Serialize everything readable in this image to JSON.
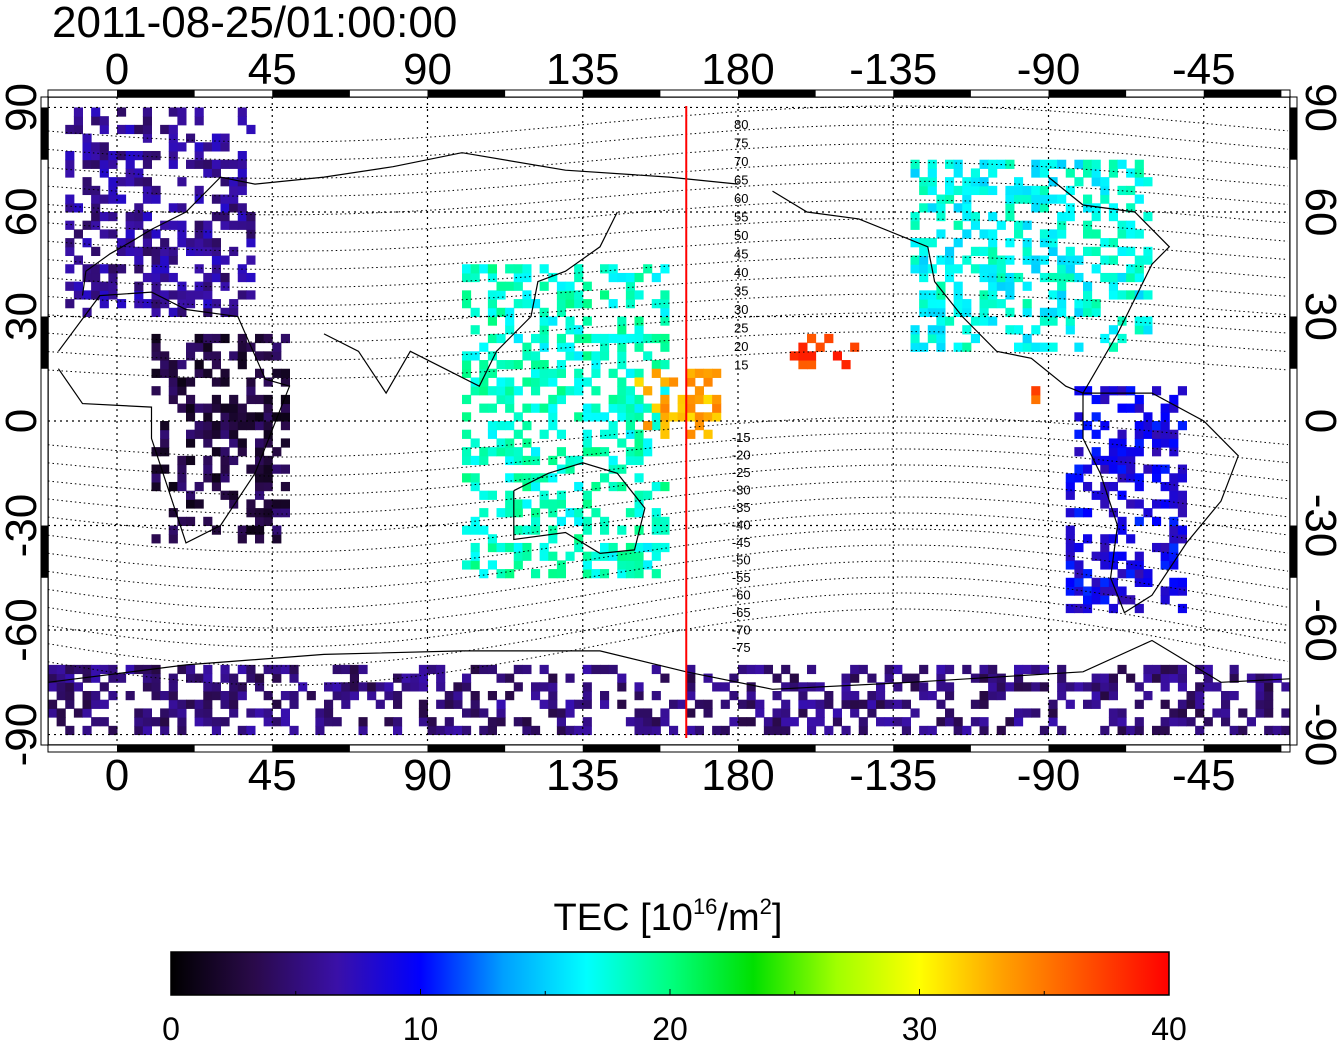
{
  "title": "2011-08-25/01:00:00",
  "map": {
    "lon_ticks": [
      "0",
      "45",
      "90",
      "135",
      "180",
      "-135",
      "-90",
      "-45"
    ],
    "lon_values": [
      0,
      45,
      90,
      135,
      180,
      225,
      270,
      315
    ],
    "lat_ticks": [
      "90",
      "60",
      "30",
      "0",
      "-30",
      "-60",
      "-90"
    ],
    "lat_values": [
      90,
      60,
      30,
      0,
      -30,
      -60,
      -90
    ],
    "lon_range": [
      -20,
      340
    ],
    "lat_range": [
      -93,
      93
    ],
    "grid": true,
    "meridian_line_lon": 165,
    "meridian_line_color": "#ff0000",
    "mag_lat_labels_north": [
      "80",
      "75",
      "70",
      "65",
      "60",
      "55",
      "50",
      "45",
      "40",
      "35",
      "30",
      "25",
      "20",
      "15"
    ],
    "mag_lat_labels_south": [
      "15",
      "20",
      "25",
      "30",
      "35",
      "40",
      "45",
      "50",
      "55",
      "60",
      "65",
      "70",
      "75"
    ]
  },
  "colorbar": {
    "title_main": "TEC  [10",
    "title_sup1": "16",
    "title_mid": "/m",
    "title_sup2": "2",
    "title_end": "]",
    "tick_labels": [
      "0",
      "10",
      "20",
      "30",
      "40"
    ],
    "tick_values": [
      0,
      10,
      20,
      30,
      40
    ],
    "range": [
      0,
      40
    ],
    "colors": [
      "#000000",
      "#2a0a4a",
      "#3a10a8",
      "#0000ff",
      "#00a0ff",
      "#00ffff",
      "#00ff80",
      "#00e000",
      "#a0ff00",
      "#ffff00",
      "#ffa000",
      "#ff5000",
      "#ff0000"
    ]
  },
  "chart_data": {
    "type": "heatmap",
    "title": "2011-08-25/01:00:00",
    "xlabel": "",
    "ylabel": "",
    "xlim": [
      -20,
      340
    ],
    "ylim": [
      -93,
      93
    ],
    "value_label": "TEC [10^16/m^2]",
    "value_range": [
      0,
      40
    ],
    "regions": [
      {
        "name_text": "",
        "lon": [
          -15,
          40
        ],
        "lat": [
          30,
          88
        ],
        "tec": 6
      },
      {
        "name_text": "",
        "lon": [
          10,
          50
        ],
        "lat": [
          -35,
          25
        ],
        "tec": 3
      },
      {
        "name_text": "",
        "lon": [
          100,
          160
        ],
        "lat": [
          -45,
          45
        ],
        "tec": 18
      },
      {
        "name_text": "",
        "lon": [
          230,
          300
        ],
        "lat": [
          20,
          75
        ],
        "tec": 17
      },
      {
        "name_text": "",
        "lon": [
          275,
          310
        ],
        "lat": [
          -55,
          10
        ],
        "tec": 9
      },
      {
        "name_text": "",
        "lon": [
          195,
          215
        ],
        "lat": [
          15,
          25
        ],
        "tec": 38
      },
      {
        "name_text": "",
        "lon": [
          265,
          275
        ],
        "lat": [
          5,
          12
        ],
        "tec": 37
      },
      {
        "name_text": "",
        "lon": [
          150,
          175
        ],
        "lat": [
          -5,
          15
        ],
        "tec": 33
      },
      {
        "name_text": "",
        "lon": [
          -20,
          340
        ],
        "lat": [
          -90,
          -70
        ],
        "tec": 5
      }
    ]
  }
}
